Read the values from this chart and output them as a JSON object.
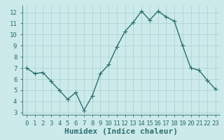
{
  "x": [
    0,
    1,
    2,
    3,
    4,
    5,
    6,
    7,
    8,
    9,
    10,
    11,
    12,
    13,
    14,
    15,
    16,
    17,
    18,
    19,
    20,
    21,
    22,
    23
  ],
  "y": [
    7.0,
    6.5,
    6.6,
    5.8,
    5.0,
    4.2,
    4.8,
    3.2,
    4.5,
    6.5,
    7.3,
    8.9,
    10.3,
    11.1,
    12.1,
    11.3,
    12.1,
    11.6,
    11.2,
    9.0,
    7.0,
    6.8,
    5.9,
    5.1
  ],
  "xlim": [
    -0.5,
    23.5
  ],
  "ylim": [
    2.8,
    12.6
  ],
  "yticks": [
    3,
    4,
    5,
    6,
    7,
    8,
    9,
    10,
    11,
    12
  ],
  "xticks": [
    0,
    1,
    2,
    3,
    4,
    5,
    6,
    7,
    8,
    9,
    10,
    11,
    12,
    13,
    14,
    15,
    16,
    17,
    18,
    19,
    20,
    21,
    22,
    23
  ],
  "xlabel": "Humidex (Indice chaleur)",
  "background_color": "#cceaea",
  "grid_color": "#b0d4d4",
  "line_color": "#2d6e6e",
  "marker_color": "#2d6e6e",
  "axis_label_color": "#2d6e6e",
  "tick_label_color": "#2d6e6e",
  "tick_label_fontsize": 6.5,
  "xlabel_fontsize": 8,
  "line_width": 1.0,
  "marker_size": 2.5
}
